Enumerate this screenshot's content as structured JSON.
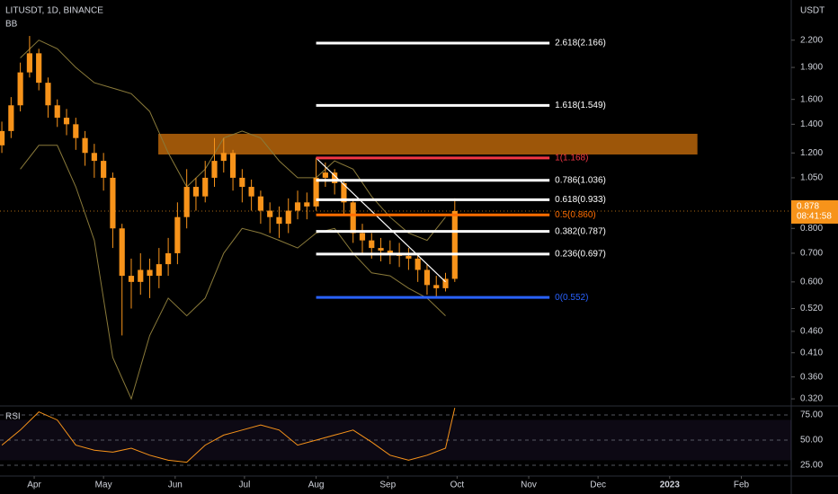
{
  "chart_data": {
    "type": "candlestick",
    "title": "LITUSDT, 1D, BINANCE",
    "indicator": "BB",
    "currency": "USDT",
    "log_scale": true,
    "color": "#f7931a",
    "xlim": [
      -14.8,
      327.6
    ],
    "xticks": [
      {
        "value": 0,
        "label": "Apr"
      },
      {
        "value": 30,
        "label": "May"
      },
      {
        "value": 61,
        "label": "Jun"
      },
      {
        "value": 91,
        "label": "Jul"
      },
      {
        "value": 122,
        "label": "Aug"
      },
      {
        "value": 153,
        "label": "Sep"
      },
      {
        "value": 183,
        "label": "Oct"
      },
      {
        "value": 214,
        "label": "Nov"
      },
      {
        "value": 244,
        "label": "Dec"
      },
      {
        "value": 275,
        "label": "2023"
      },
      {
        "value": 306,
        "label": "Feb"
      }
    ],
    "ylim": [
      0.308,
      2.73
    ],
    "yticks": [
      {
        "value": 2.2,
        "label": "2.200"
      },
      {
        "value": 1.9,
        "label": "1.900"
      },
      {
        "value": 1.6,
        "label": "1.600"
      },
      {
        "value": 1.4,
        "label": "1.400"
      },
      {
        "value": 1.2,
        "label": "1.200"
      },
      {
        "value": 1.05,
        "label": "1.050"
      },
      {
        "value": 0.8,
        "label": "0.800"
      },
      {
        "value": 0.7,
        "label": "0.700"
      },
      {
        "value": 0.6,
        "label": "0.600"
      },
      {
        "value": 0.52,
        "label": "0.520"
      },
      {
        "value": 0.46,
        "label": "0.460"
      },
      {
        "value": 0.41,
        "label": "0.410"
      },
      {
        "value": 0.36,
        "label": "0.360"
      },
      {
        "value": 0.32,
        "label": "0.320"
      }
    ],
    "candles": {
      "x": [
        -14,
        -10,
        -6,
        -2,
        2,
        6,
        10,
        14,
        18,
        22,
        26,
        30,
        34,
        38,
        42,
        46,
        50,
        54,
        58,
        62,
        66,
        70,
        74,
        78,
        82,
        86,
        90,
        94,
        98,
        102,
        106,
        110,
        114,
        118,
        122,
        126,
        130,
        134,
        138,
        142,
        146,
        150,
        154,
        158,
        162,
        166,
        170,
        174,
        178,
        182
      ],
      "open": [
        1.25,
        1.35,
        1.55,
        1.85,
        2.05,
        1.75,
        1.55,
        1.45,
        1.4,
        1.3,
        1.2,
        1.15,
        1.05,
        0.8,
        0.62,
        0.6,
        0.64,
        0.62,
        0.66,
        0.7,
        0.85,
        1.0,
        0.95,
        1.05,
        1.15,
        1.2,
        1.05,
        1.0,
        0.95,
        0.88,
        0.85,
        0.82,
        0.88,
        0.92,
        0.9,
        1.05,
        1.08,
        1.02,
        0.92,
        0.78,
        0.75,
        0.72,
        0.71,
        0.7,
        0.69,
        0.68,
        0.64,
        0.59,
        0.58,
        0.61
      ],
      "high": [
        1.42,
        1.62,
        1.95,
        2.25,
        2.1,
        1.8,
        1.6,
        1.52,
        1.45,
        1.35,
        1.26,
        1.2,
        1.08,
        0.82,
        0.68,
        0.7,
        0.68,
        0.72,
        0.76,
        0.92,
        1.1,
        1.05,
        1.15,
        1.3,
        1.3,
        1.22,
        1.1,
        1.04,
        0.98,
        0.92,
        0.9,
        0.94,
        0.98,
        0.97,
        1.17,
        1.14,
        1.1,
        1.04,
        0.94,
        0.82,
        0.78,
        0.76,
        0.75,
        0.74,
        0.72,
        0.7,
        0.66,
        0.62,
        0.63,
        0.94
      ],
      "low": [
        1.2,
        1.3,
        1.5,
        1.8,
        1.68,
        1.45,
        1.38,
        1.32,
        1.22,
        1.12,
        1.05,
        0.98,
        0.72,
        0.45,
        0.52,
        0.56,
        0.55,
        0.58,
        0.62,
        0.66,
        0.8,
        0.88,
        0.92,
        1.0,
        1.08,
        0.98,
        0.92,
        0.88,
        0.82,
        0.78,
        0.76,
        0.78,
        0.84,
        0.84,
        0.88,
        1.0,
        0.96,
        0.86,
        0.74,
        0.7,
        0.68,
        0.67,
        0.66,
        0.65,
        0.64,
        0.6,
        0.56,
        0.55,
        0.57,
        0.6
      ],
      "close": [
        1.35,
        1.55,
        1.85,
        2.05,
        1.75,
        1.55,
        1.45,
        1.4,
        1.3,
        1.2,
        1.15,
        1.05,
        0.8,
        0.62,
        0.6,
        0.64,
        0.62,
        0.66,
        0.7,
        0.85,
        1.0,
        0.95,
        1.05,
        1.15,
        1.2,
        1.05,
        1.0,
        0.95,
        0.88,
        0.85,
        0.82,
        0.88,
        0.92,
        0.9,
        1.05,
        1.08,
        1.02,
        0.92,
        0.78,
        0.75,
        0.72,
        0.71,
        0.7,
        0.69,
        0.68,
        0.64,
        0.59,
        0.58,
        0.61,
        0.878
      ]
    },
    "bands": {
      "color": "#8a7a3a",
      "x": [
        -6,
        2,
        10,
        18,
        26,
        34,
        42,
        50,
        58,
        66,
        74,
        82,
        90,
        98,
        106,
        114,
        122,
        130,
        138,
        146,
        154,
        162,
        170,
        178
      ],
      "upper": [
        2.0,
        2.2,
        2.1,
        1.9,
        1.75,
        1.7,
        1.65,
        1.5,
        1.2,
        1.0,
        1.1,
        1.3,
        1.35,
        1.3,
        1.15,
        1.05,
        1.05,
        1.15,
        1.1,
        0.95,
        0.85,
        0.78,
        0.75,
        0.85
      ],
      "lower": [
        1.1,
        1.25,
        1.25,
        1.0,
        0.75,
        0.4,
        0.32,
        0.45,
        0.55,
        0.5,
        0.55,
        0.7,
        0.8,
        0.78,
        0.75,
        0.72,
        0.78,
        0.8,
        0.7,
        0.63,
        0.62,
        0.58,
        0.55,
        0.5
      ]
    },
    "zone": {
      "x": [
        53.7,
        287
      ],
      "top": 1.33,
      "bottom": 1.19,
      "color": "#b8650a"
    },
    "trendline": {
      "x": [
        122,
        178
      ],
      "y": [
        1.168,
        0.6
      ],
      "color": "#ffffff"
    },
    "fib_x": [
      122,
      223
    ],
    "fib_levels": [
      {
        "label": "2.618(2.166)",
        "price": 2.166,
        "color": "#ffffff"
      },
      {
        "label": "1.618(1.549)",
        "price": 1.549,
        "color": "#ffffff"
      },
      {
        "label": "1(1.168)",
        "price": 1.168,
        "color": "#f23645"
      },
      {
        "label": "0.786(1.036)",
        "price": 1.036,
        "color": "#ffffff"
      },
      {
        "label": "0.618(0.933)",
        "price": 0.933,
        "color": "#ffffff"
      },
      {
        "label": "0.5(0.860)",
        "price": 0.86,
        "color": "#ff6d00"
      },
      {
        "label": "0.382(0.787)",
        "price": 0.787,
        "color": "#ffffff"
      },
      {
        "label": "0.236(0.697)",
        "price": 0.697,
        "color": "#ffffff"
      },
      {
        "label": "0(0.552)",
        "price": 0.552,
        "color": "#2962ff"
      }
    ],
    "last_price": {
      "value": 0.878,
      "label": "0.878",
      "countdown": "08:41:58",
      "color": "#f7931a"
    },
    "rsi": {
      "name": "RSI",
      "color": "#f7931a",
      "ylim": [
        14.3,
        83.9
      ],
      "yticks": [
        {
          "value": 75,
          "label": "75.00"
        },
        {
          "value": 50,
          "label": "50.00"
        },
        {
          "value": 25,
          "label": "25.00"
        }
      ],
      "band": [
        30,
        70
      ],
      "x": [
        -14,
        -6,
        2,
        10,
        18,
        26,
        34,
        42,
        50,
        58,
        66,
        74,
        82,
        90,
        98,
        106,
        114,
        122,
        130,
        138,
        146,
        154,
        162,
        170,
        178,
        182
      ],
      "values": [
        45,
        60,
        78,
        70,
        45,
        40,
        38,
        42,
        35,
        30,
        28,
        45,
        55,
        60,
        65,
        60,
        45,
        50,
        55,
        60,
        48,
        35,
        30,
        35,
        42,
        82
      ]
    }
  }
}
